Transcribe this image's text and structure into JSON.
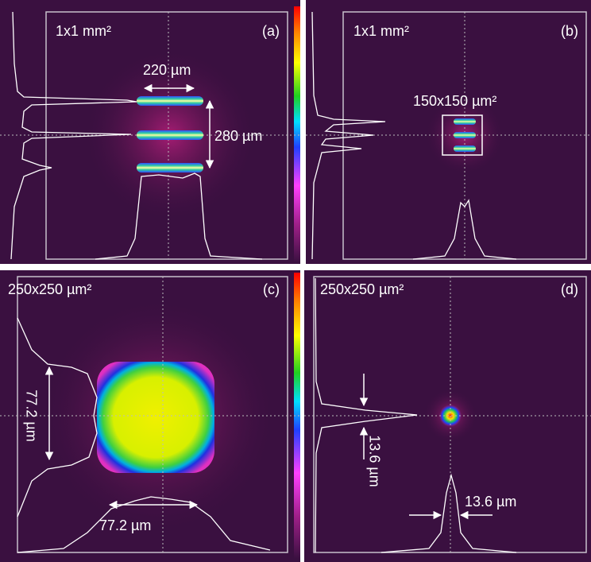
{
  "panels": [
    {
      "label": "(a)",
      "size": "1x1 mm²",
      "annotations": [
        "220 µm",
        "280 µm"
      ]
    },
    {
      "label": "(b)",
      "size": "1x1 mm²",
      "annotations": [
        "150x150 µm²"
      ]
    },
    {
      "label": "(c)",
      "size": "250x250 µm²",
      "annotations": [
        "77.2 µm",
        "77.2 µm"
      ]
    },
    {
      "label": "(d)",
      "size": "250x250 µm²",
      "annotations": [
        "13.6 µm",
        "13.6 µm"
      ]
    }
  ]
}
